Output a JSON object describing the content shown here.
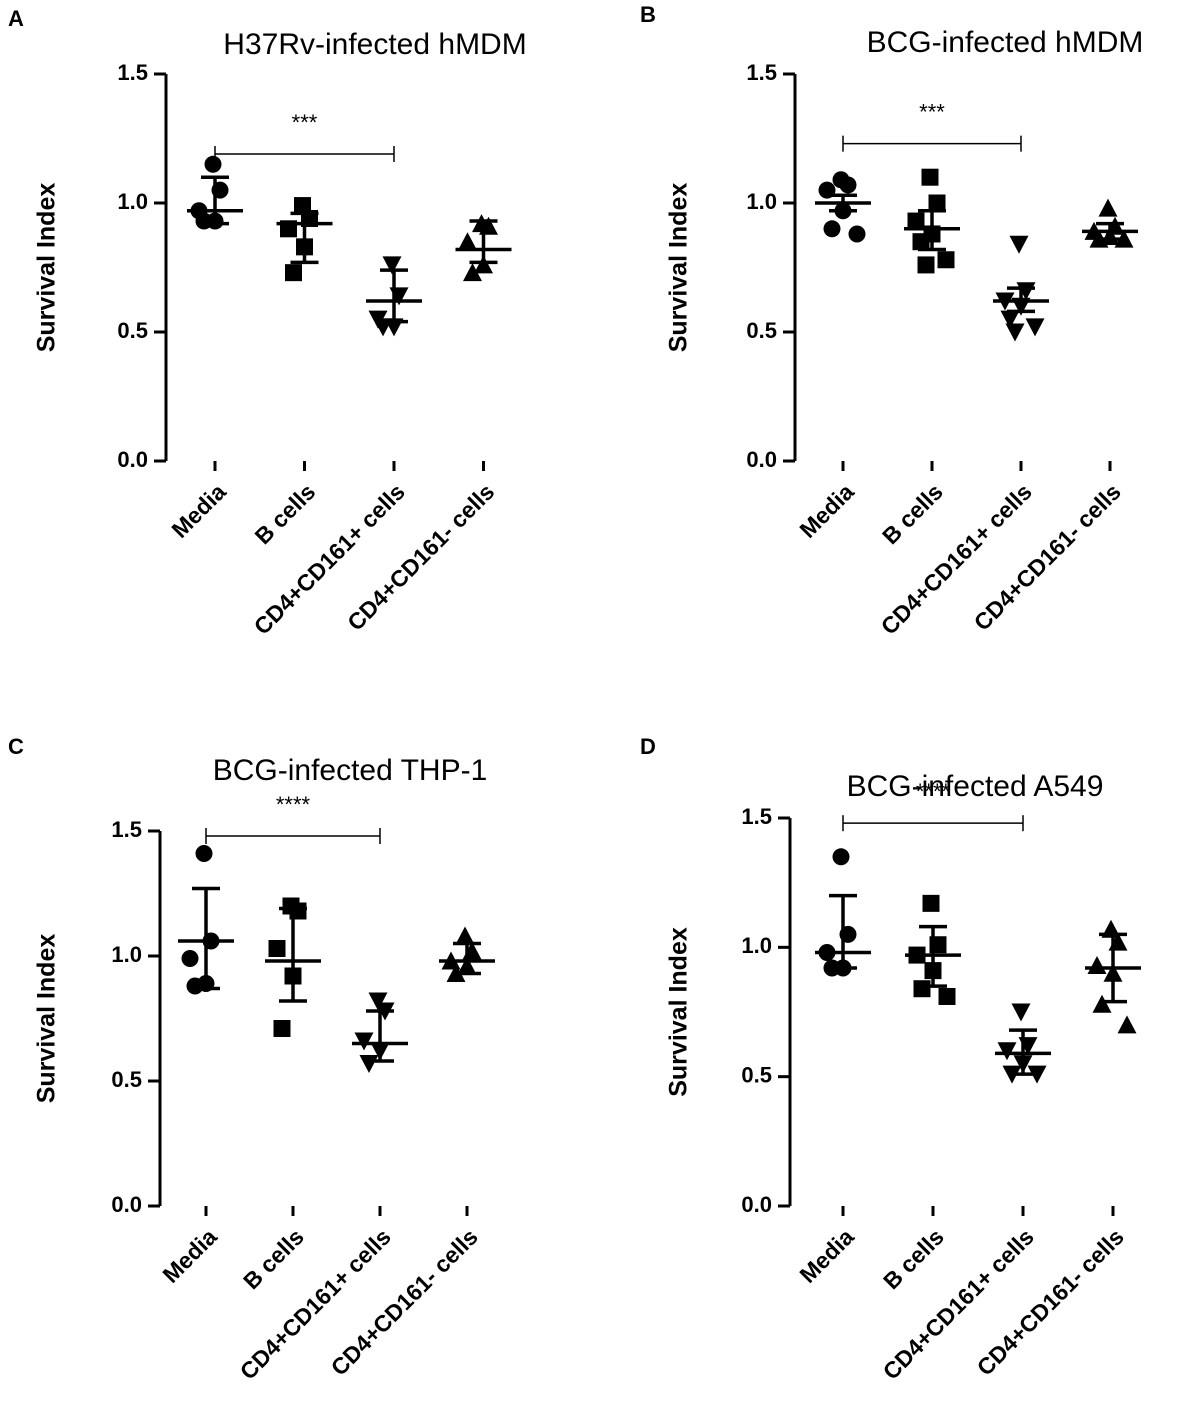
{
  "chart_data": [
    {
      "type": "dot",
      "panel": "A",
      "title": "H37Rv-infected hMDM",
      "ylabel": "Survival Index",
      "categories": [
        "Media",
        "B cells",
        "CD4+CD161+ cells",
        "CD4+CD161- cells"
      ],
      "markers": [
        "circle",
        "square",
        "triangle-down",
        "triangle-up"
      ],
      "color": "#000000",
      "points": [
        [
          1.15,
          1.05,
          0.97,
          0.93,
          0.93
        ],
        [
          0.99,
          0.94,
          0.9,
          0.83,
          0.73
        ],
        [
          0.76,
          0.64,
          0.55,
          0.52,
          0.52
        ],
        [
          0.92,
          0.91,
          0.85,
          0.76,
          0.73
        ]
      ],
      "centers": [
        0.97,
        0.92,
        0.62,
        0.82
      ],
      "uppers": [
        1.1,
        0.96,
        0.74,
        0.93
      ],
      "lowers": [
        0.92,
        0.77,
        0.54,
        0.77
      ],
      "annotation": {
        "text": "***",
        "from": 0,
        "to": 2,
        "y": 1.19
      },
      "ylim": [
        0,
        1.5
      ],
      "yticks": [
        {
          "value": 0,
          "label": "0.0"
        },
        {
          "value": 0.5,
          "label": "0.5"
        },
        {
          "value": 1,
          "label": "1.0"
        },
        {
          "value": 1.5,
          "label": "1.5"
        }
      ]
    },
    {
      "type": "dot",
      "panel": "B",
      "title": "BCG-infected hMDM",
      "ylabel": "Survival Index",
      "categories": [
        "Media",
        "B cells",
        "CD4+CD161+ cells",
        "CD4+CD161- cells"
      ],
      "markers": [
        "circle",
        "square",
        "triangle-down",
        "triangle-up"
      ],
      "color": "#000000",
      "points": [
        [
          1.09,
          1.07,
          1.05,
          0.97,
          0.9,
          0.88
        ],
        [
          1.1,
          1.0,
          0.93,
          0.88,
          0.85,
          0.78,
          0.76
        ],
        [
          0.84,
          0.66,
          0.62,
          0.6,
          0.55,
          0.52,
          0.5
        ],
        [
          0.98,
          0.91,
          0.89,
          0.87,
          0.86,
          0.86
        ]
      ],
      "centers": [
        1.0,
        0.9,
        0.62,
        0.89
      ],
      "uppers": [
        1.03,
        0.97,
        0.67,
        0.92
      ],
      "lowers": [
        0.97,
        0.82,
        0.58,
        0.86
      ],
      "annotation": {
        "text": "***",
        "from": 0,
        "to": 2,
        "y": 1.23
      },
      "ylim": [
        0,
        1.5
      ],
      "yticks": [
        {
          "value": 0,
          "label": "0.0"
        },
        {
          "value": 0.5,
          "label": "0.5"
        },
        {
          "value": 1,
          "label": "1.0"
        },
        {
          "value": 1.5,
          "label": "1.5"
        }
      ]
    },
    {
      "type": "dot",
      "panel": "C",
      "title": "BCG-infected THP-1",
      "ylabel": "Survival Index",
      "categories": [
        "Media",
        "B cells",
        "CD4+CD161+ cells",
        "CD4+CD161- cells"
      ],
      "markers": [
        "circle",
        "square",
        "triangle-down",
        "triangle-up"
      ],
      "color": "#000000",
      "points": [
        [
          1.41,
          1.06,
          0.99,
          0.89,
          0.88
        ],
        [
          1.2,
          1.18,
          1.03,
          0.92,
          0.71
        ],
        [
          0.82,
          0.78,
          0.66,
          0.62,
          0.57
        ],
        [
          1.08,
          1.02,
          0.98,
          0.96,
          0.93
        ]
      ],
      "centers": [
        1.06,
        0.98,
        0.65,
        0.98
      ],
      "uppers": [
        1.27,
        1.19,
        0.78,
        1.05
      ],
      "lowers": [
        0.87,
        0.82,
        0.58,
        0.93
      ],
      "annotation": {
        "text": "****",
        "from": 0,
        "to": 2,
        "y": 1.48
      },
      "ylim": [
        0,
        1.5
      ],
      "yticks": [
        {
          "value": 0,
          "label": "0.0"
        },
        {
          "value": 0.5,
          "label": "0.5"
        },
        {
          "value": 1,
          "label": "1.0"
        },
        {
          "value": 1.5,
          "label": "1.5"
        }
      ]
    },
    {
      "type": "dot",
      "panel": "D",
      "title": "BCG-infected A549",
      "ylabel": "Survival Index",
      "categories": [
        "Media",
        "B cells",
        "CD4+CD161+ cells",
        "CD4+CD161- cells"
      ],
      "markers": [
        "circle",
        "square",
        "triangle-down",
        "triangle-up"
      ],
      "color": "#000000",
      "points": [
        [
          1.35,
          1.05,
          0.98,
          0.92,
          0.92
        ],
        [
          1.17,
          1.01,
          0.97,
          0.91,
          0.84,
          0.81
        ],
        [
          0.75,
          0.62,
          0.6,
          0.55,
          0.51,
          0.51
        ],
        [
          1.07,
          1.02,
          0.93,
          0.9,
          0.78,
          0.7
        ]
      ],
      "centers": [
        0.98,
        0.97,
        0.59,
        0.92
      ],
      "uppers": [
        1.2,
        1.08,
        0.68,
        1.05
      ],
      "lowers": [
        0.92,
        0.85,
        0.51,
        0.79
      ],
      "annotation": {
        "text": "****",
        "from": 0,
        "to": 2,
        "y": 1.48
      },
      "ylim": [
        0,
        1.5
      ],
      "yticks": [
        {
          "value": 0,
          "label": "0.0"
        },
        {
          "value": 0.5,
          "label": "0.5"
        },
        {
          "value": 1,
          "label": "1.0"
        },
        {
          "value": 1.5,
          "label": "1.5"
        }
      ]
    }
  ]
}
